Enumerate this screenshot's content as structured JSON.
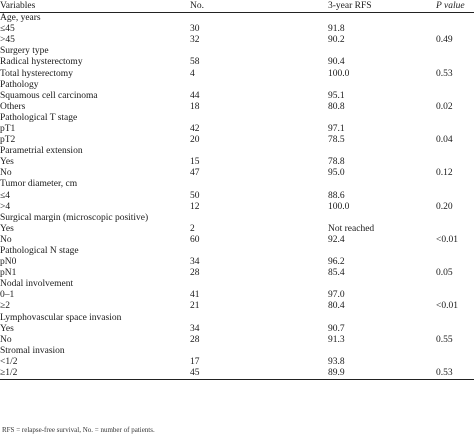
{
  "table": {
    "headers": {
      "variables": "Variables",
      "no": "No.",
      "rfs": "3-year RFS",
      "p": "P value"
    },
    "rows": [
      {
        "type": "group",
        "label": "Age, years"
      },
      {
        "type": "item",
        "label": "≤45",
        "no": "30",
        "rfs": "91.8",
        "p": ""
      },
      {
        "type": "item",
        "label": ">45",
        "no": "32",
        "rfs": "90.2",
        "p": "0.49"
      },
      {
        "type": "group",
        "label": "Surgery type"
      },
      {
        "type": "item",
        "label": "Radical hysterectomy",
        "no": "58",
        "rfs": "90.4",
        "p": ""
      },
      {
        "type": "item",
        "label": "Total hysterectomy",
        "no": "4",
        "rfs": "100.0",
        "p": "0.53"
      },
      {
        "type": "group",
        "label": "Pathology"
      },
      {
        "type": "item",
        "label": "Squamous cell carcinoma",
        "no": "44",
        "rfs": "95.1",
        "p": ""
      },
      {
        "type": "item",
        "label": "Others",
        "no": "18",
        "rfs": "80.8",
        "p": "0.02"
      },
      {
        "type": "group",
        "label": "Pathological T stage"
      },
      {
        "type": "item",
        "label": "pT1",
        "no": "42",
        "rfs": "97.1",
        "p": ""
      },
      {
        "type": "item",
        "label": "pT2",
        "no": "20",
        "rfs": "78.5",
        "p": "0.04"
      },
      {
        "type": "group",
        "label": "Parametrial extension"
      },
      {
        "type": "item",
        "label": "Yes",
        "no": "15",
        "rfs": "78.8",
        "p": ""
      },
      {
        "type": "item",
        "label": "No",
        "no": "47",
        "rfs": "95.0",
        "p": "0.12"
      },
      {
        "type": "group",
        "label": "Tumor diameter, cm"
      },
      {
        "type": "item",
        "label": "≤4",
        "no": "50",
        "rfs": "88.6",
        "p": ""
      },
      {
        "type": "item",
        "label": ">4",
        "no": "12",
        "rfs": "100.0",
        "p": "0.20"
      },
      {
        "type": "group",
        "label": "Surgical margin (microscopic positive)"
      },
      {
        "type": "item",
        "label": "Yes",
        "no": "2",
        "rfs": "Not reached",
        "p": ""
      },
      {
        "type": "item",
        "label": "No",
        "no": "60",
        "rfs": "92.4",
        "p": "<0.01"
      },
      {
        "type": "group",
        "label": "Pathological N stage"
      },
      {
        "type": "item",
        "label": "pN0",
        "no": "34",
        "rfs": "96.2",
        "p": ""
      },
      {
        "type": "item",
        "label": "pN1",
        "no": "28",
        "rfs": "85.4",
        "p": "0.05"
      },
      {
        "type": "group",
        "label": "Nodal involvement"
      },
      {
        "type": "item",
        "label": "0–1",
        "no": "41",
        "rfs": "97.0",
        "p": ""
      },
      {
        "type": "item",
        "label": "≥2",
        "no": "21",
        "rfs": "80.4",
        "p": "<0.01"
      },
      {
        "type": "group",
        "label": "Lymphovascular space invasion"
      },
      {
        "type": "item",
        "label": "Yes",
        "no": "34",
        "rfs": "90.7",
        "p": ""
      },
      {
        "type": "item",
        "label": "No",
        "no": "28",
        "rfs": "91.3",
        "p": "0.55"
      },
      {
        "type": "group",
        "label": "Stromal invasion"
      },
      {
        "type": "item",
        "label": "<1/2",
        "no": "17",
        "rfs": "93.8",
        "p": ""
      },
      {
        "type": "item",
        "label": "≥1/2",
        "no": "45",
        "rfs": "89.9",
        "p": "0.53"
      }
    ]
  },
  "footnote": "RFS = relapse-free survival, No. = number of patients."
}
